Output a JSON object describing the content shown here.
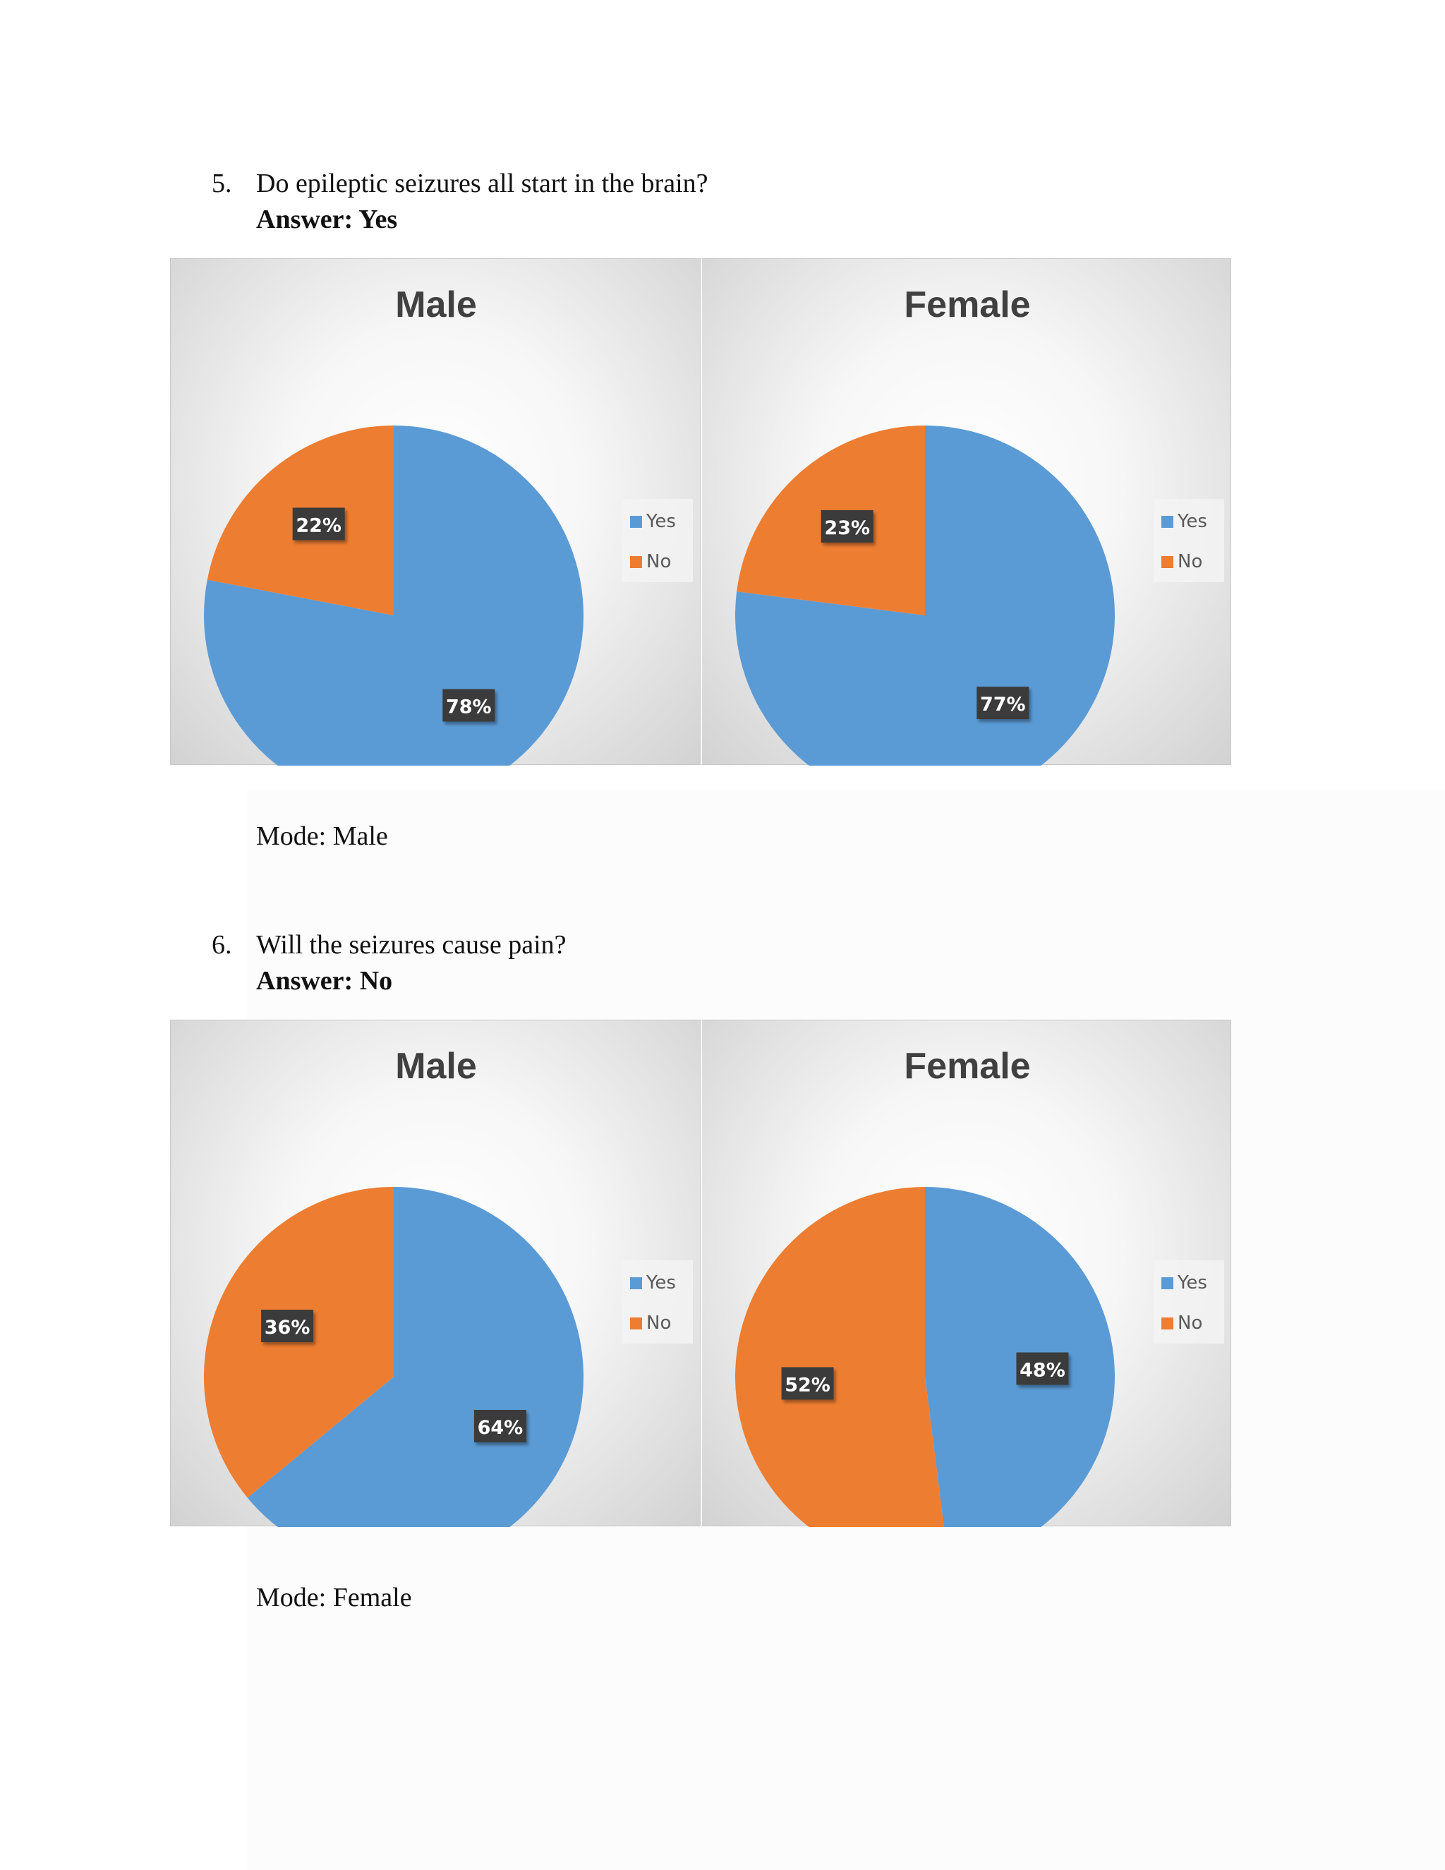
{
  "questions": [
    {
      "number": "5.",
      "text": "Do epileptic seizures all start in the brain?",
      "answer": "Answer: Yes",
      "mode": "Mode: Male"
    },
    {
      "number": "6.",
      "text": "Will the seizures cause pain?",
      "answer": "Answer: No",
      "mode": "Mode: Female"
    }
  ],
  "colors": {
    "yes": "#5B9BD5",
    "no": "#ED7D31",
    "label_bg": "#3a3a3a"
  },
  "chart_data": [
    {
      "type": "pie",
      "title": "Male",
      "categories": [
        "Yes",
        "No"
      ],
      "values": [
        78,
        22
      ],
      "labels": [
        "78%",
        "22%"
      ],
      "legend": "right",
      "question": "5."
    },
    {
      "type": "pie",
      "title": "Female",
      "categories": [
        "Yes",
        "No"
      ],
      "values": [
        77,
        23
      ],
      "labels": [
        "77%",
        "23%"
      ],
      "legend": "right",
      "question": "5."
    },
    {
      "type": "pie",
      "title": "Male",
      "categories": [
        "Yes",
        "No"
      ],
      "values": [
        64,
        36
      ],
      "labels": [
        "64%",
        "36%"
      ],
      "legend": "right",
      "question": "6."
    },
    {
      "type": "pie",
      "title": "Female",
      "categories": [
        "Yes",
        "No"
      ],
      "values": [
        48,
        52
      ],
      "labels": [
        "48%",
        "52%"
      ],
      "legend": "right",
      "question": "6."
    }
  ]
}
